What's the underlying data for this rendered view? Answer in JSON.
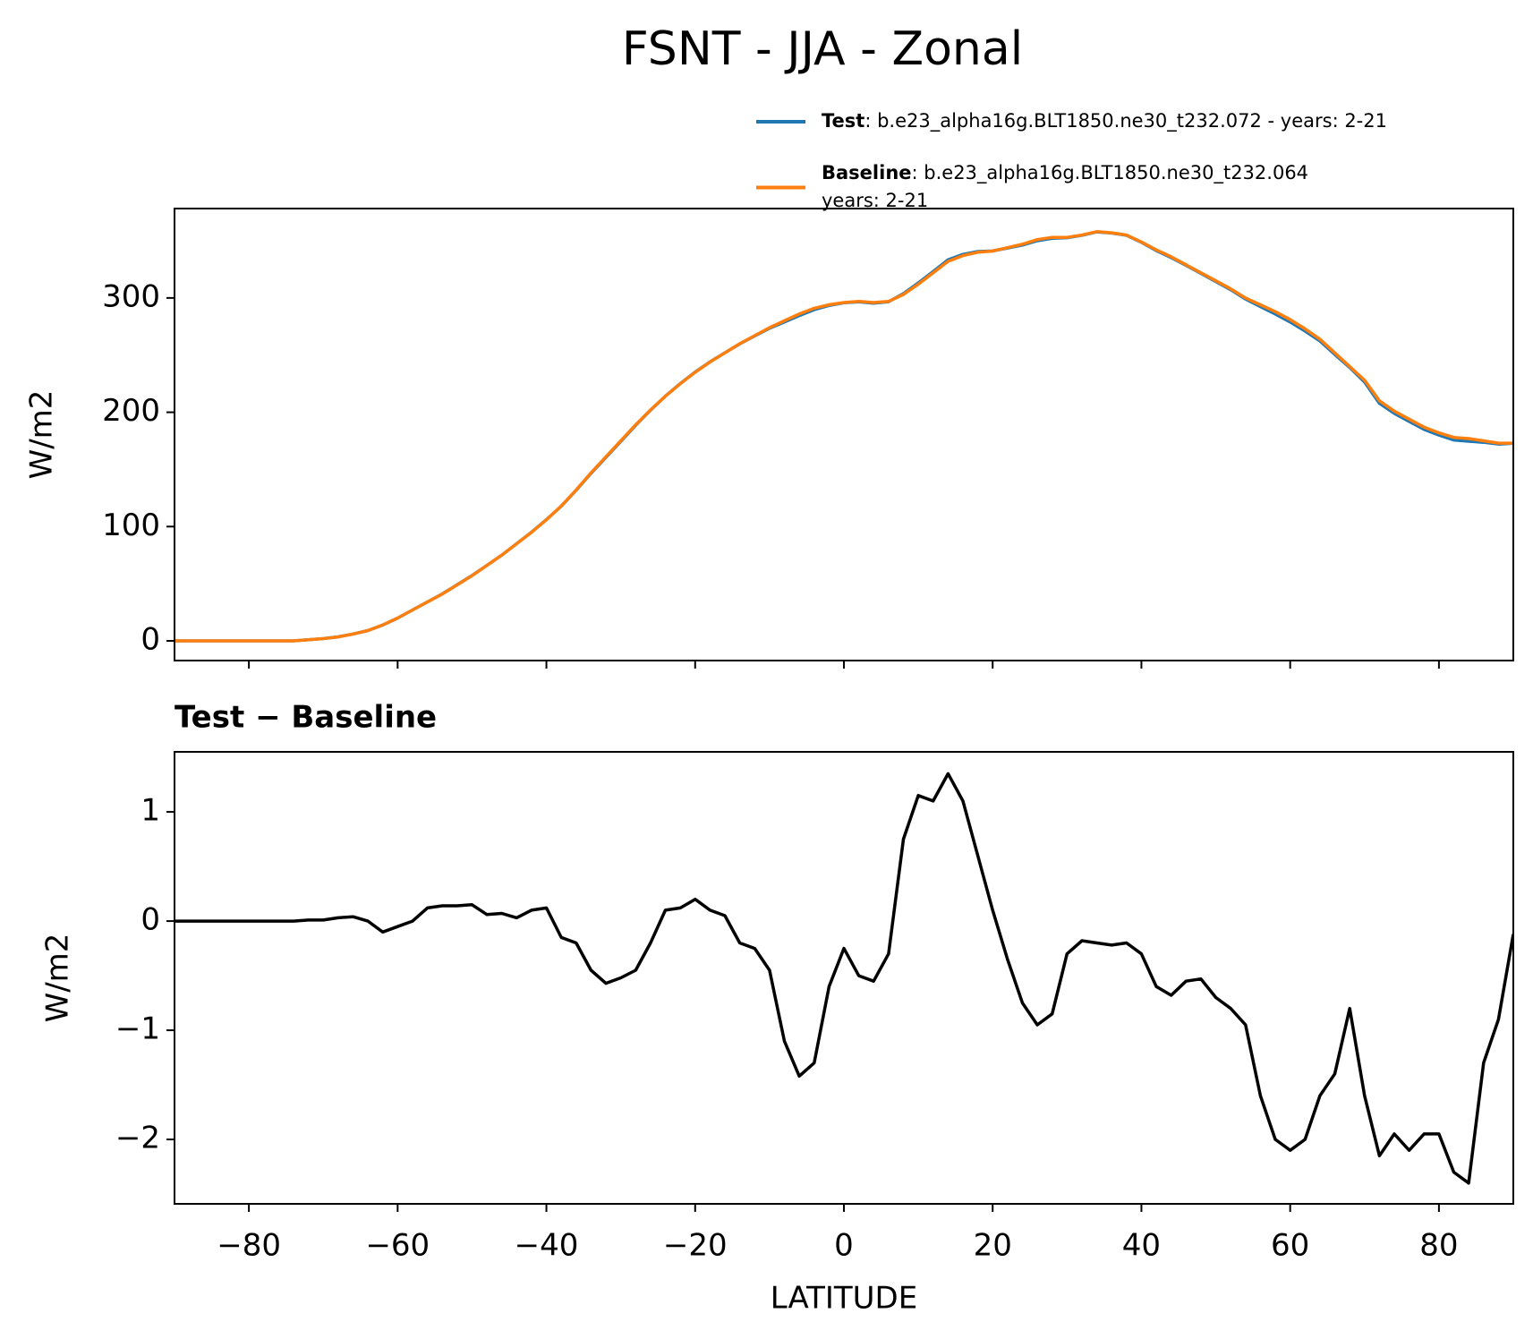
{
  "chart_data": [
    {
      "type": "line",
      "title": "FSNT - JJA - Zonal",
      "ylabel": "W/m2",
      "x": [
        -90,
        -88,
        -86,
        -84,
        -82,
        -80,
        -78,
        -76,
        -74,
        -72,
        -70,
        -68,
        -66,
        -64,
        -62,
        -60,
        -58,
        -56,
        -54,
        -52,
        -50,
        -48,
        -46,
        -44,
        -42,
        -40,
        -38,
        -36,
        -34,
        -32,
        -30,
        -28,
        -26,
        -24,
        -22,
        -20,
        -18,
        -16,
        -14,
        -12,
        -10,
        -8,
        -6,
        -4,
        -2,
        0,
        2,
        4,
        6,
        8,
        10,
        12,
        14,
        16,
        18,
        20,
        22,
        24,
        26,
        28,
        30,
        32,
        34,
        36,
        38,
        40,
        42,
        44,
        46,
        48,
        50,
        52,
        54,
        56,
        58,
        60,
        62,
        64,
        66,
        68,
        70,
        72,
        74,
        76,
        78,
        80,
        82,
        84,
        86,
        88,
        90
      ],
      "series": [
        {
          "name": "Test",
          "description": [
            ": b.e23_alpha16g.BLT1850.ne30_t232.072 - years: 2-21"
          ],
          "color": "#1f77b4",
          "values": [
            0,
            0,
            0,
            0,
            0,
            0,
            0,
            0,
            0,
            1.01,
            2.01,
            3.53,
            6.04,
            9,
            13.9,
            19.95,
            27,
            34.12,
            41.14,
            49.14,
            57.15,
            66.06,
            75.07,
            85.03,
            95.1,
            106.12,
            117.85,
            131.8,
            146.55,
            160.43,
            174.48,
            188.55,
            201.8,
            214.1,
            225.12,
            235.2,
            244.1,
            252.05,
            259.8,
            266.75,
            273.55,
            278.9,
            284.58,
            289.7,
            293.4,
            295.75,
            296.5,
            295.45,
            296.7,
            303.75,
            313.15,
            323.1,
            333.35,
            338.1,
            340.6,
            341.1,
            343.65,
            346.25,
            350.05,
            352.15,
            352.7,
            354.82,
            357.8,
            356.78,
            354.8,
            348.7,
            341.4,
            335.32,
            328.45,
            321.47,
            314.3,
            307.2,
            299.05,
            292.4,
            286,
            278.9,
            271,
            262.4,
            250.6,
            239.2,
            226.4,
            207.85,
            199.05,
            191.9,
            185.05,
            180.05,
            175.7,
            174.6,
            173.7,
            172.1,
            172.88
          ]
        },
        {
          "name": "Baseline",
          "description": [
            ": b.e23_alpha16g.BLT1850.ne30_t232.064",
            "years: 2-21"
          ],
          "color": "#ff7f0e",
          "values": [
            0,
            0,
            0,
            0,
            0,
            0,
            0,
            0,
            0,
            1,
            2,
            3.5,
            6,
            9,
            14,
            20,
            27,
            34,
            41,
            49,
            57,
            66,
            75,
            85,
            95,
            106,
            118,
            132,
            147,
            161,
            175,
            189,
            202,
            214,
            225,
            235,
            244,
            252,
            260,
            267,
            274,
            280,
            286,
            291,
            294,
            296,
            297,
            296,
            297,
            303,
            312,
            322,
            332,
            337,
            340,
            341,
            344,
            347,
            351,
            353,
            353,
            355,
            358,
            357,
            355,
            349,
            342,
            336,
            329,
            322,
            315,
            308,
            300,
            294,
            288,
            281,
            273,
            264,
            252,
            240,
            228,
            210,
            201,
            194,
            187,
            182,
            178,
            177,
            175,
            173,
            173
          ]
        }
      ],
      "xlim": [
        -90,
        90
      ],
      "xticks": [
        -80,
        -60,
        -40,
        -20,
        0,
        20,
        40,
        60,
        80
      ],
      "ylim": [
        -17.2,
        378.2
      ],
      "yticks": [
        0,
        100,
        200,
        300
      ]
    },
    {
      "type": "line",
      "title": "Test − Baseline",
      "ylabel": "W/m2",
      "xlabel": "LATITUDE",
      "x": [
        -90,
        -88,
        -86,
        -84,
        -82,
        -80,
        -78,
        -76,
        -74,
        -72,
        -70,
        -68,
        -66,
        -64,
        -62,
        -60,
        -58,
        -56,
        -54,
        -52,
        -50,
        -48,
        -46,
        -44,
        -42,
        -40,
        -38,
        -36,
        -34,
        -32,
        -30,
        -28,
        -26,
        -24,
        -22,
        -20,
        -18,
        -16,
        -14,
        -12,
        -10,
        -8,
        -6,
        -4,
        -2,
        0,
        2,
        4,
        6,
        8,
        10,
        12,
        14,
        16,
        18,
        20,
        22,
        24,
        26,
        28,
        30,
        32,
        34,
        36,
        38,
        40,
        42,
        44,
        46,
        48,
        50,
        52,
        54,
        56,
        58,
        60,
        62,
        64,
        66,
        68,
        70,
        72,
        74,
        76,
        78,
        80,
        82,
        84,
        86,
        88,
        90
      ],
      "color": "#000000",
      "values": [
        0,
        0,
        0,
        0,
        0,
        0,
        0,
        0,
        0,
        0.01,
        0.01,
        0.03,
        0.04,
        0,
        -0.1,
        -0.05,
        0,
        0.12,
        0.14,
        0.14,
        0.15,
        0.06,
        0.07,
        0.03,
        0.1,
        0.12,
        -0.15,
        -0.2,
        -0.45,
        -0.57,
        -0.52,
        -0.45,
        -0.2,
        0.1,
        0.12,
        0.2,
        0.1,
        0.05,
        -0.2,
        -0.25,
        -0.45,
        -1.1,
        -1.42,
        -1.3,
        -0.6,
        -0.25,
        -0.5,
        -0.55,
        -0.3,
        0.75,
        1.15,
        1.1,
        1.35,
        1.1,
        0.6,
        0.1,
        -0.35,
        -0.75,
        -0.95,
        -0.85,
        -0.3,
        -0.18,
        -0.2,
        -0.22,
        -0.2,
        -0.3,
        -0.6,
        -0.68,
        -0.55,
        -0.53,
        -0.7,
        -0.8,
        -0.95,
        -1.6,
        -2.0,
        -2.1,
        -2.0,
        -1.6,
        -1.4,
        -0.8,
        -1.6,
        -2.15,
        -1.95,
        -2.1,
        -1.95,
        -1.95,
        -2.3,
        -2.4,
        -1.3,
        -0.9,
        -0.12
      ],
      "xlim": [
        -90,
        90
      ],
      "xticks": [
        {
          "value": -80,
          "label": "−80"
        },
        {
          "value": -60,
          "label": "−60"
        },
        {
          "value": -40,
          "label": "−40"
        },
        {
          "value": -20,
          "label": "−20"
        },
        0,
        20,
        40,
        60,
        80
      ],
      "ylim": [
        -2.59,
        1.55
      ],
      "yticks": [
        {
          "value": -2,
          "label": "−2"
        },
        {
          "value": -1,
          "label": "−1"
        },
        0,
        1
      ]
    }
  ]
}
